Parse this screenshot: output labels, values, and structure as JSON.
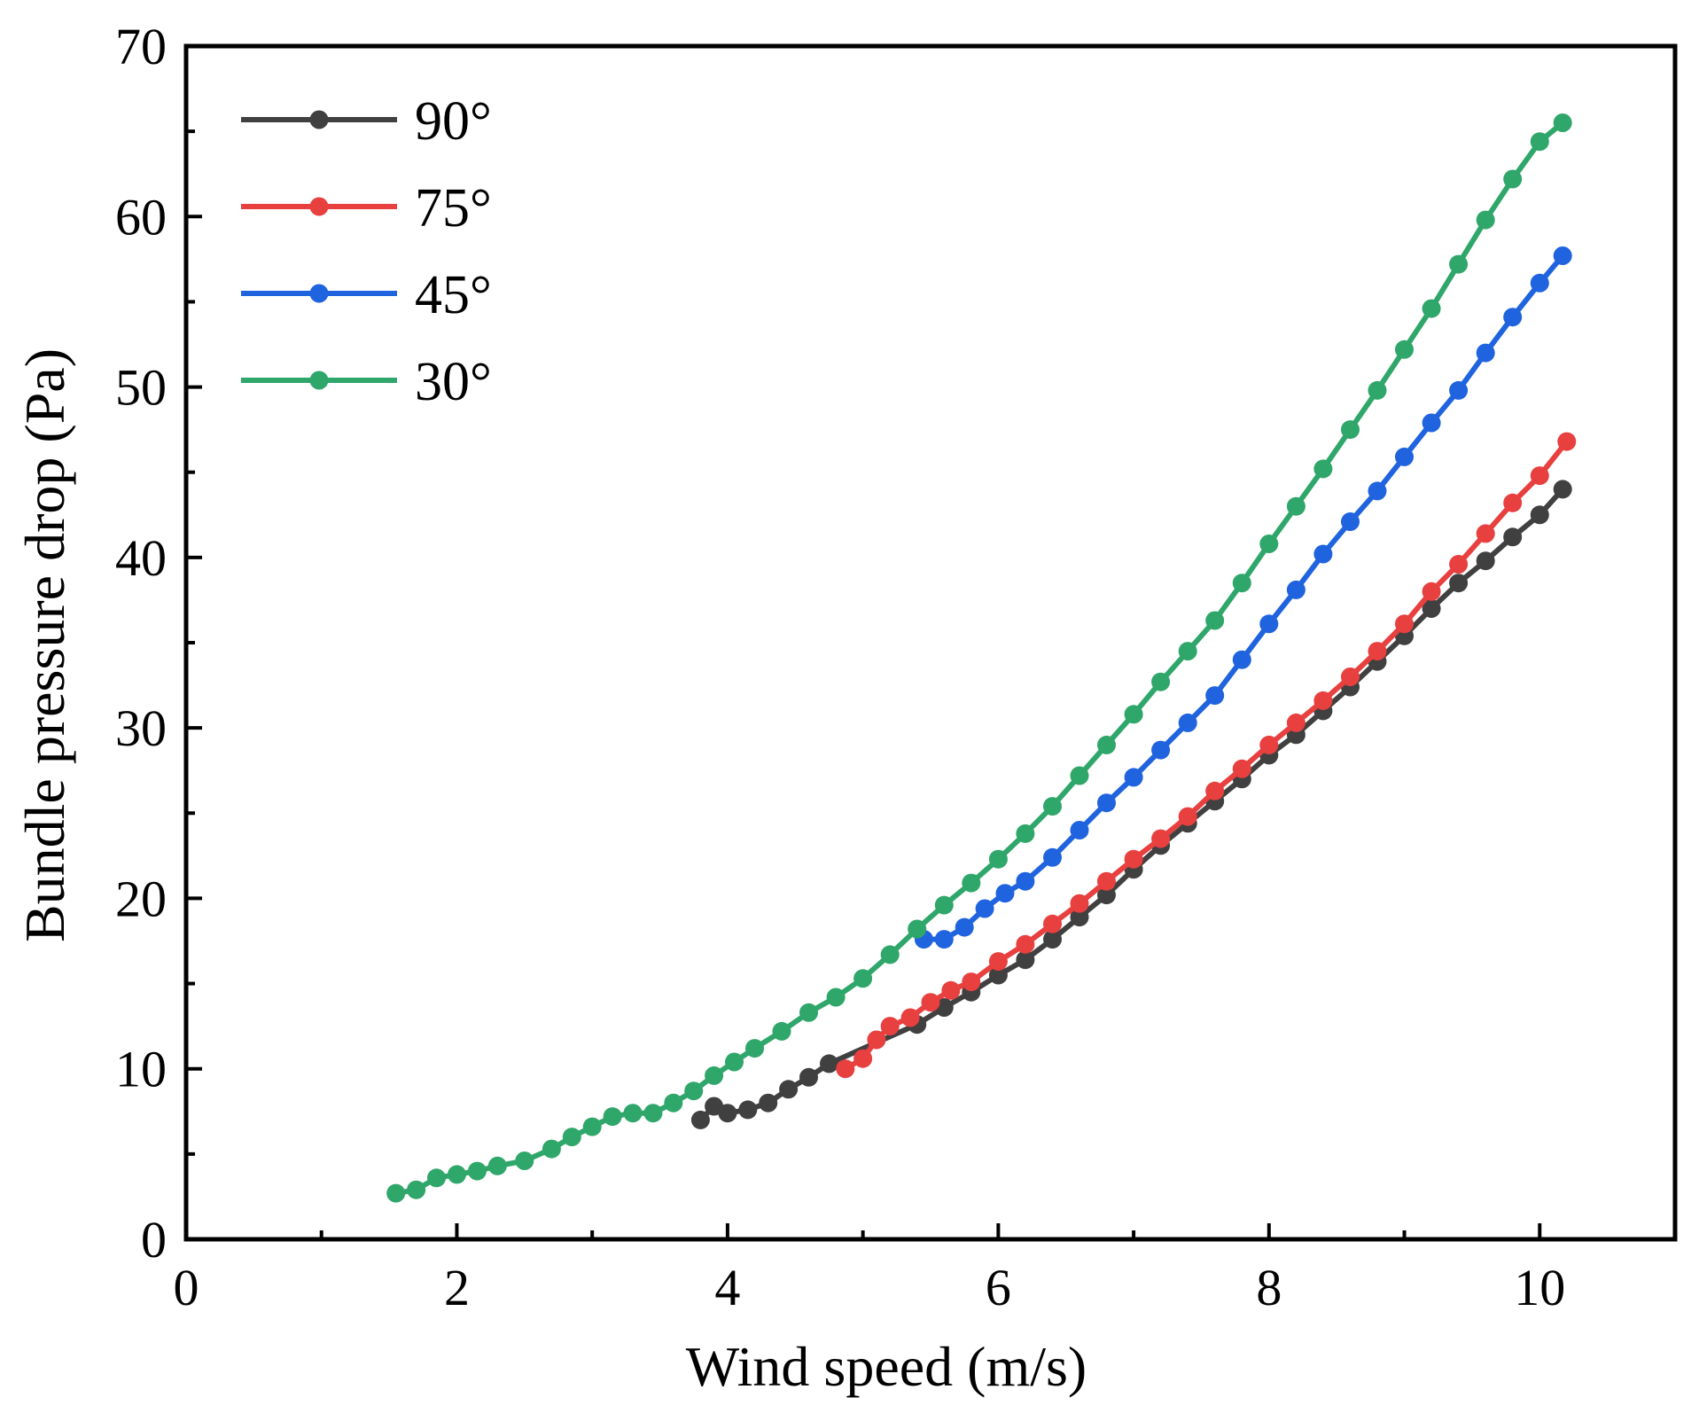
{
  "chart_data": {
    "type": "line",
    "title": "",
    "xlabel": "Wind speed (m/s)",
    "ylabel": "Bundle pressure drop (Pa)",
    "xlim": [
      0,
      11
    ],
    "ylim": [
      0,
      70
    ],
    "x_major_ticks": [
      0,
      2,
      4,
      6,
      8,
      10
    ],
    "x_tick_labels": [
      "0",
      "2",
      "4",
      "6",
      "8",
      "10"
    ],
    "y_major_ticks": [
      0,
      10,
      20,
      30,
      40,
      50,
      60,
      70
    ],
    "y_tick_labels": [
      "0",
      "10",
      "20",
      "30",
      "40",
      "50",
      "60",
      "70"
    ],
    "grid": false,
    "legend_position": "top-left",
    "series": [
      {
        "name": "90°",
        "color": "#404040",
        "x": [
          3.8,
          3.9,
          4.0,
          4.15,
          4.3,
          4.45,
          4.6,
          4.75,
          5.4,
          5.6,
          5.8,
          6.0,
          6.2,
          6.4,
          6.6,
          6.8,
          7.0,
          7.2,
          7.4,
          7.6,
          7.8,
          8.0,
          8.2,
          8.4,
          8.6,
          8.8,
          9.0,
          9.2,
          9.4,
          9.6,
          9.8,
          10.0,
          10.17
        ],
        "y": [
          7.0,
          7.8,
          7.4,
          7.6,
          8.0,
          8.8,
          9.5,
          10.3,
          12.6,
          13.6,
          14.5,
          15.5,
          16.4,
          17.6,
          18.9,
          20.2,
          21.7,
          23.1,
          24.4,
          25.7,
          27.0,
          28.4,
          29.6,
          31.0,
          32.4,
          33.9,
          35.4,
          37.0,
          38.5,
          39.8,
          41.2,
          42.5,
          44.0
        ]
      },
      {
        "name": "75°",
        "color": "#e83f3f",
        "x": [
          4.87,
          5.0,
          5.1,
          5.2,
          5.35,
          5.5,
          5.65,
          5.8,
          6.0,
          6.2,
          6.4,
          6.6,
          6.8,
          7.0,
          7.2,
          7.4,
          7.6,
          7.8,
          8.0,
          8.2,
          8.4,
          8.6,
          8.8,
          9.0,
          9.2,
          9.4,
          9.6,
          9.8,
          10.0,
          10.2
        ],
        "y": [
          10.0,
          10.6,
          11.7,
          12.5,
          13.0,
          13.9,
          14.6,
          15.1,
          16.3,
          17.3,
          18.5,
          19.7,
          21.0,
          22.3,
          23.5,
          24.8,
          26.3,
          27.6,
          29.0,
          30.3,
          31.6,
          33.0,
          34.5,
          36.1,
          38.0,
          39.6,
          41.4,
          43.2,
          44.8,
          46.8
        ]
      },
      {
        "name": "45°",
        "color": "#1f63df",
        "x": [
          5.45,
          5.6,
          5.75,
          5.9,
          6.05,
          6.2,
          6.4,
          6.6,
          6.8,
          7.0,
          7.2,
          7.4,
          7.6,
          7.8,
          8.0,
          8.2,
          8.4,
          8.6,
          8.8,
          9.0,
          9.2,
          9.4,
          9.6,
          9.8,
          10.0,
          10.17
        ],
        "y": [
          17.6,
          17.6,
          18.3,
          19.4,
          20.3,
          21.0,
          22.4,
          24.0,
          25.6,
          27.1,
          28.7,
          30.3,
          31.9,
          34.0,
          36.1,
          38.1,
          40.2,
          42.1,
          43.9,
          45.9,
          47.9,
          49.8,
          52.0,
          54.1,
          56.1,
          57.7
        ]
      },
      {
        "name": "30°",
        "color": "#2fa66a",
        "x": [
          1.55,
          1.7,
          1.85,
          2.0,
          2.15,
          2.3,
          2.5,
          2.7,
          2.85,
          3.0,
          3.15,
          3.3,
          3.45,
          3.6,
          3.75,
          3.9,
          4.05,
          4.2,
          4.4,
          4.6,
          4.8,
          5.0,
          5.2,
          5.4,
          5.6,
          5.8,
          6.0,
          6.2,
          6.4,
          6.6,
          6.8,
          7.0,
          7.2,
          7.4,
          7.6,
          7.8,
          8.0,
          8.2,
          8.4,
          8.6,
          8.8,
          9.0,
          9.2,
          9.4,
          9.6,
          9.8,
          10.0,
          10.17
        ],
        "y": [
          2.7,
          2.9,
          3.6,
          3.8,
          4.0,
          4.3,
          4.6,
          5.3,
          6.0,
          6.6,
          7.2,
          7.4,
          7.4,
          8.0,
          8.7,
          9.6,
          10.4,
          11.2,
          12.2,
          13.3,
          14.2,
          15.3,
          16.7,
          18.2,
          19.6,
          20.9,
          22.3,
          23.8,
          25.4,
          27.2,
          29.0,
          30.8,
          32.7,
          34.5,
          36.3,
          38.5,
          40.8,
          43.0,
          45.2,
          47.5,
          49.8,
          52.2,
          54.6,
          57.2,
          59.8,
          62.2,
          64.4,
          65.5
        ]
      }
    ]
  }
}
